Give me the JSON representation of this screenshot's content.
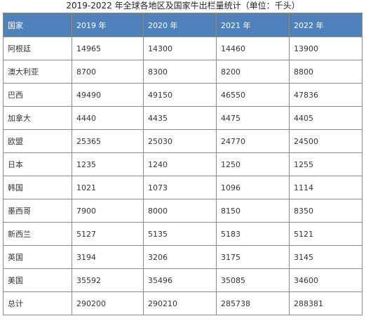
{
  "caption": "2019-2022 年全球各地区及国家牛出栏量统计（单位：千头）",
  "table": {
    "headers": [
      "国家",
      "2019 年",
      "2020 年",
      "2021 年",
      "2022 年"
    ],
    "rows": [
      [
        "阿根廷",
        "14965",
        "14300",
        "14460",
        "13900"
      ],
      [
        "澳大利亚",
        "8700",
        "8300",
        "8200",
        "8800"
      ],
      [
        "巴西",
        "49490",
        "49150",
        "46550",
        "47836"
      ],
      [
        "加拿大",
        "4440",
        "4435",
        "4475",
        "4405"
      ],
      [
        "欧盟",
        "25365",
        "25030",
        "24770",
        "24500"
      ],
      [
        "日本",
        "1235",
        "1240",
        "1250",
        "1255"
      ],
      [
        "韩国",
        "1021",
        "1073",
        "1096",
        "1114"
      ],
      [
        "墨西哥",
        "7900",
        "8000",
        "8150",
        "8350"
      ],
      [
        "新西兰",
        "5127",
        "5135",
        "5183",
        "5121"
      ],
      [
        "英国",
        "3194",
        "3206",
        "3175",
        "3145"
      ],
      [
        "美国",
        "35592",
        "35496",
        "35085",
        "34600"
      ],
      [
        "总计",
        "290200",
        "290210",
        "285738",
        "288381"
      ]
    ]
  },
  "colors": {
    "header_bg": "#4f81bd",
    "header_text": "#ffffff",
    "border": "#8a8a8a",
    "cell_text": "#333333"
  }
}
